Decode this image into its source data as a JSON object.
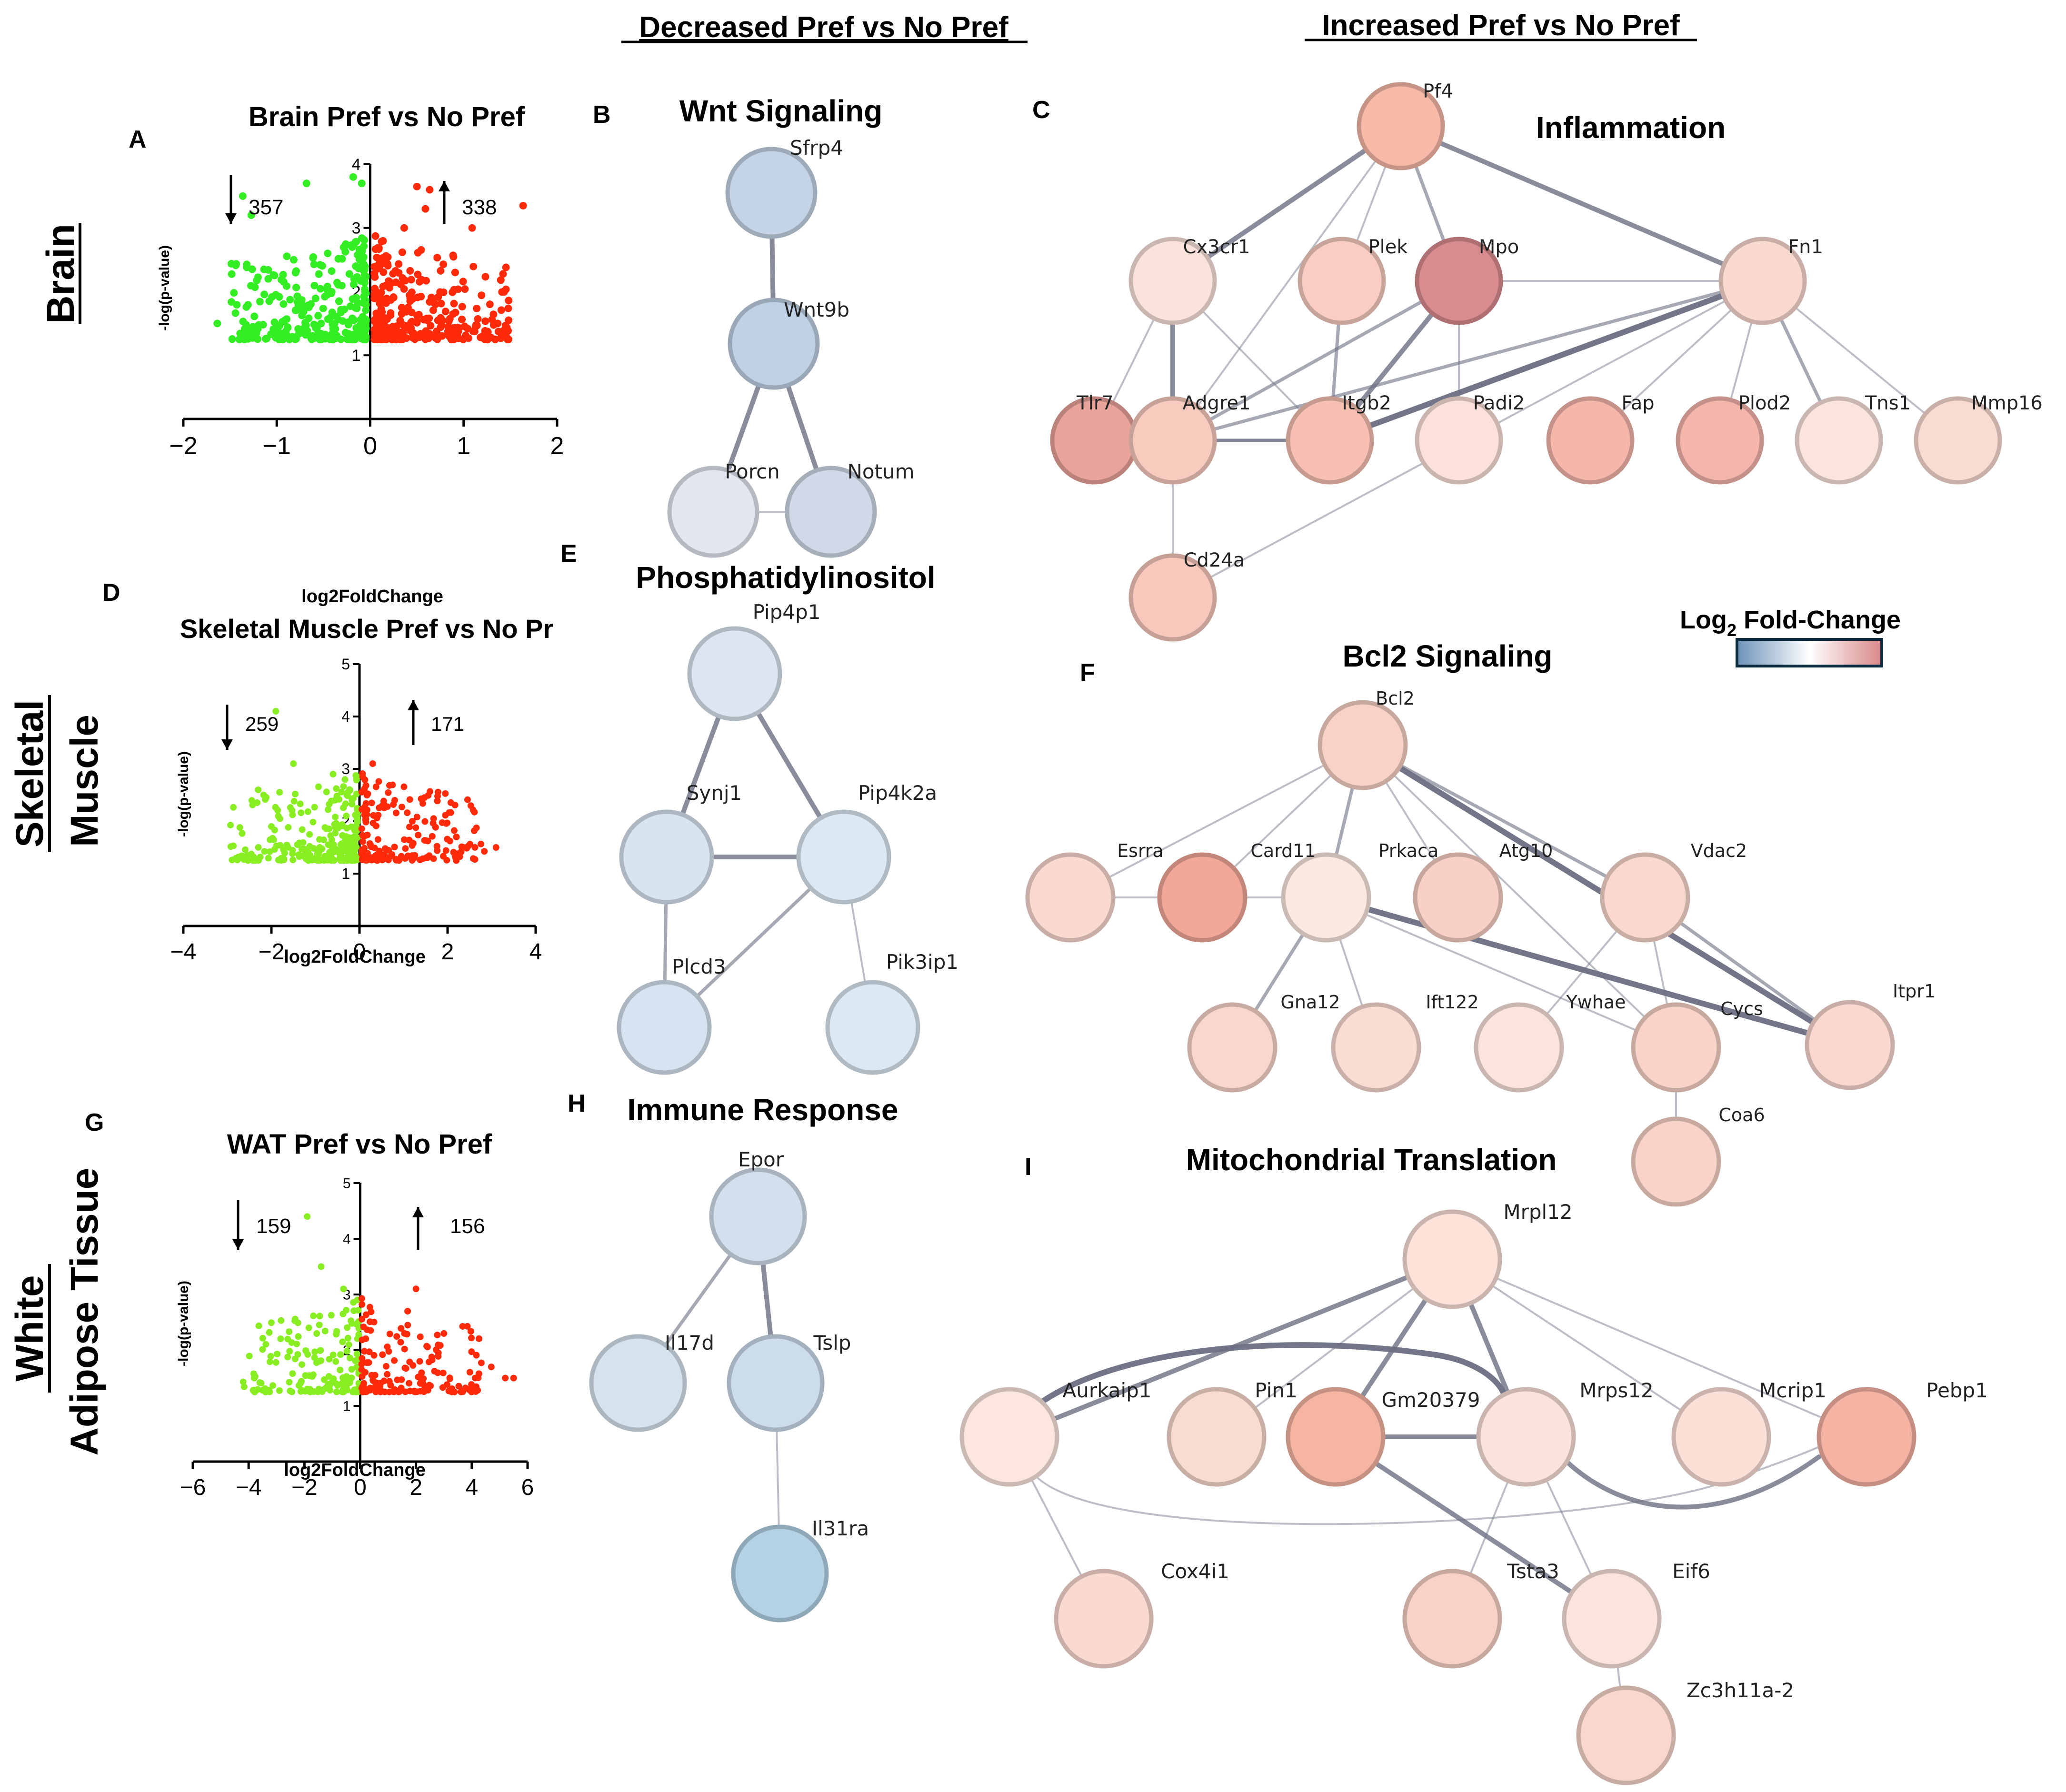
{
  "headers": {
    "decreased": "Decreased Pref vs No Pref",
    "increased": "Increased Pref vs No Pref"
  },
  "row_labels": {
    "brain": [
      "Brain"
    ],
    "muscle": [
      "Skeletal",
      "Muscle"
    ],
    "wat": [
      "White",
      "Adipose Tissue"
    ]
  },
  "panel_letters": {
    "A": "A",
    "B": "B",
    "C": "C",
    "D": "D",
    "E": "E",
    "F": "F",
    "G": "G",
    "H": "H",
    "I": "I"
  },
  "legend": {
    "title_prefix": "Log",
    "title_sub": "2",
    "title_suffix": " Fold-Change",
    "colors": [
      "#6d93b8",
      "#ffffff",
      "#d88888"
    ]
  },
  "colors": {
    "down_points": "#33ee22",
    "down_points_alt": "#88ee22",
    "up_points": "#ff2a0a",
    "edge": "#6b6f82"
  },
  "chart_data": [
    {
      "id": "A",
      "type": "scatter",
      "title": "Brain Pref vs No Pref",
      "xlabel": "log2FoldChange",
      "ylabel": "-log(p-value)",
      "xlim": [
        -2.2,
        2.2
      ],
      "ylim": [
        0,
        4
      ],
      "xticks": [
        "−2",
        "−1",
        "0",
        "1",
        "2"
      ],
      "yticks": [
        "1",
        "2",
        "3",
        "4"
      ],
      "down_count": "357",
      "up_count": "338",
      "down_color": "#33ee22",
      "up_color": "#ff2a0a",
      "down_extremes": [
        [
          -1.8,
          1.5
        ],
        [
          -1.5,
          3.5
        ],
        [
          -1.4,
          3.2
        ],
        [
          -0.75,
          3.7
        ],
        [
          -0.2,
          3.8
        ],
        [
          -0.1,
          3.7
        ],
        [
          -1.2,
          2.2
        ],
        [
          -0.9,
          2.5
        ],
        [
          -0.5,
          2.6
        ]
      ],
      "up_extremes": [
        [
          1.8,
          3.35
        ],
        [
          0.55,
          3.65
        ],
        [
          0.7,
          3.6
        ],
        [
          0.65,
          3.3
        ],
        [
          0.4,
          3.0
        ],
        [
          1.2,
          3.0
        ],
        [
          1.6,
          1.3
        ],
        [
          1.5,
          1.5
        ],
        [
          1.0,
          2.3
        ]
      ]
    },
    {
      "id": "D",
      "type": "scatter",
      "title": "Skeletal Muscle Pref vs No Pr",
      "xlabel": "log2FoldChange",
      "ylabel": "-log(p-value)",
      "xlim": [
        -4,
        4
      ],
      "ylim": [
        0,
        5
      ],
      "xticks": [
        "−4",
        "−2",
        "0",
        "2",
        "4"
      ],
      "yticks": [
        "1",
        "2",
        "3",
        "4",
        "5"
      ],
      "down_count": "259",
      "up_count": "171",
      "down_color": "#88ee22",
      "up_color": "#ff2a0a",
      "down_extremes": [
        [
          -1.9,
          4.1
        ],
        [
          -2.3,
          2.6
        ],
        [
          -1.5,
          3.1
        ],
        [
          -0.6,
          2.9
        ],
        [
          -2.0,
          1.9
        ]
      ],
      "up_extremes": [
        [
          3.1,
          1.5
        ],
        [
          0.3,
          3.1
        ],
        [
          0.8,
          2.4
        ],
        [
          2.2,
          1.7
        ],
        [
          1.2,
          2.0
        ]
      ]
    },
    {
      "id": "G",
      "type": "scatter",
      "title": "WAT Pref vs No Pref",
      "xlabel": "log2FoldChange",
      "ylabel": "-log(p-value)",
      "xlim": [
        -6,
        6
      ],
      "ylim": [
        0,
        5
      ],
      "xticks": [
        "−6",
        "−4",
        "−2",
        "0",
        "2",
        "4",
        "6"
      ],
      "yticks": [
        "1",
        "2",
        "3",
        "4",
        "5"
      ],
      "down_count": "159",
      "up_count": "156",
      "down_color": "#88ee22",
      "up_color": "#ff2a0a",
      "down_extremes": [
        [
          -1.9,
          4.4
        ],
        [
          -3.8,
          1.5
        ],
        [
          -2.6,
          2.2
        ],
        [
          -1.4,
          3.5
        ],
        [
          -0.6,
          3.1
        ]
      ],
      "up_extremes": [
        [
          5.5,
          1.5
        ],
        [
          4.7,
          1.7
        ],
        [
          2.0,
          3.1
        ],
        [
          1.7,
          2.7
        ],
        [
          3.0,
          2.3
        ],
        [
          5.2,
          1.5
        ]
      ]
    }
  ],
  "networks": [
    {
      "id": "B",
      "title": "Wnt Signaling",
      "nodes": [
        {
          "label": "Sfrp4",
          "fill": "#c4d4e6"
        },
        {
          "label": "Wnt9b",
          "fill": "#bfd1e4"
        },
        {
          "label": "Porcn",
          "fill": "#e2e7f0"
        },
        {
          "label": "Notum",
          "fill": "#cfd9e7"
        }
      ],
      "edges": [
        [
          "Sfrp4",
          "Wnt9b",
          3
        ],
        [
          "Wnt9b",
          "Porcn",
          3
        ],
        [
          "Wnt9b",
          "Notum",
          3
        ],
        [
          "Porcn",
          "Notum",
          1
        ]
      ]
    },
    {
      "id": "E",
      "title": "Phosphatidylinositol",
      "nodes": [
        {
          "label": "Pip4p1",
          "fill": "#dbe6f1"
        },
        {
          "label": "Synj1",
          "fill": "#d8e5f1"
        },
        {
          "label": "Pip4k2a",
          "fill": "#dce8f2"
        },
        {
          "label": "Plcd3",
          "fill": "#d6e4f1"
        },
        {
          "label": "Pik3ip1",
          "fill": "#dce8f2"
        }
      ],
      "edges": [
        [
          "Pip4p1",
          "Synj1",
          3
        ],
        [
          "Pip4p1",
          "Pip4k2a",
          3
        ],
        [
          "Synj1",
          "Pip4k2a",
          3
        ],
        [
          "Synj1",
          "Plcd3",
          2
        ],
        [
          "Pip4k2a",
          "Plcd3",
          2
        ],
        [
          "Pip4k2a",
          "Pik3ip1",
          1
        ]
      ]
    },
    {
      "id": "H",
      "title": "Immune Response",
      "nodes": [
        {
          "label": "Epor",
          "fill": "#d2e0ed"
        },
        {
          "label": "Il17d",
          "fill": "#d6e3ef"
        },
        {
          "label": "Tslp",
          "fill": "#ccdcec"
        },
        {
          "label": "Il31ra",
          "fill": "#b3d2e6"
        }
      ],
      "edges": [
        [
          "Epor",
          "Il17d",
          2
        ],
        [
          "Epor",
          "Tslp",
          3
        ],
        [
          "Tslp",
          "Il31ra",
          1
        ]
      ]
    },
    {
      "id": "C",
      "title": "Inflammation",
      "nodes": [
        {
          "label": "Pf4",
          "fill": "#f7b9a8"
        },
        {
          "label": "Cx3cr1",
          "fill": "#fbe3dc"
        },
        {
          "label": "Plek",
          "fill": "#f9cdc1"
        },
        {
          "label": "Mpo",
          "fill": "#d98c8e"
        },
        {
          "label": "Fn1",
          "fill": "#fad9cf"
        },
        {
          "label": "Tlr7",
          "fill": "#e8a39a"
        },
        {
          "label": "Adgre1",
          "fill": "#f8cbbf"
        },
        {
          "label": "Itgb2",
          "fill": "#f7c0b3"
        },
        {
          "label": "Padi2",
          "fill": "#fbe1d9"
        },
        {
          "label": "Fap",
          "fill": "#f5b7aa"
        },
        {
          "label": "Plod2",
          "fill": "#f4b5ab"
        },
        {
          "label": "Tns1",
          "fill": "#fbe4dd"
        },
        {
          "label": "Mmp16",
          "fill": "#fadbd2"
        },
        {
          "label": "Cd24a",
          "fill": "#f7c8bb"
        }
      ],
      "edges": [
        [
          "Pf4",
          "Cx3cr1",
          3
        ],
        [
          "Pf4",
          "Plek",
          1
        ],
        [
          "Pf4",
          "Mpo",
          2
        ],
        [
          "Pf4",
          "Fn1",
          3
        ],
        [
          "Pf4",
          "Adgre1",
          1
        ],
        [
          "Cx3cr1",
          "Tlr7",
          1
        ],
        [
          "Cx3cr1",
          "Adgre1",
          3
        ],
        [
          "Cx3cr1",
          "Itgb2",
          1
        ],
        [
          "Plek",
          "Itgb2",
          2
        ],
        [
          "Mpo",
          "Itgb2",
          3
        ],
        [
          "Mpo",
          "Fn1",
          1
        ],
        [
          "Mpo",
          "Padi2",
          1
        ],
        [
          "Mpo",
          "Adgre1",
          2
        ],
        [
          "Fn1",
          "Itgb2",
          4
        ],
        [
          "Fn1",
          "Adgre1",
          2
        ],
        [
          "Fn1",
          "Plod2",
          1
        ],
        [
          "Fn1",
          "Tns1",
          2
        ],
        [
          "Fn1",
          "Mmp16",
          1
        ],
        [
          "Fn1",
          "Fap",
          1
        ],
        [
          "Fn1",
          "Cd24a",
          1
        ],
        [
          "Tlr7",
          "Adgre1",
          2
        ],
        [
          "Tlr7",
          "Itgb2",
          2
        ],
        [
          "Adgre1",
          "Itgb2",
          2
        ],
        [
          "Adgre1",
          "Cd24a",
          1
        ]
      ]
    },
    {
      "id": "F",
      "title": "Bcl2 Signaling",
      "nodes": [
        {
          "label": "Bcl2",
          "fill": "#f9d2c6"
        },
        {
          "label": "Esrra",
          "fill": "#fad9cf"
        },
        {
          "label": "Card11",
          "fill": "#f2a898"
        },
        {
          "label": "Prkaca",
          "fill": "#fce8e1"
        },
        {
          "label": "Atg10",
          "fill": "#f9d0c5"
        },
        {
          "label": "Vdac2",
          "fill": "#fad8ce"
        },
        {
          "label": "Itpr1",
          "fill": "#fad8cf"
        },
        {
          "label": "Gna12",
          "fill": "#fad7cc"
        },
        {
          "label": "Ift122",
          "fill": "#fbdcd3"
        },
        {
          "label": "Ywhae",
          "fill": "#fce3dc"
        },
        {
          "label": "Cycs",
          "fill": "#f9d3c7"
        },
        {
          "label": "Coa6",
          "fill": "#f9d3c8"
        }
      ],
      "edges": [
        [
          "Bcl2",
          "Esrra",
          1
        ],
        [
          "Bcl2",
          "Card11",
          1
        ],
        [
          "Bcl2",
          "Prkaca",
          2
        ],
        [
          "Bcl2",
          "Vdac2",
          2
        ],
        [
          "Bcl2",
          "Itpr1",
          4
        ],
        [
          "Bcl2",
          "Cycs",
          1
        ],
        [
          "Bcl2",
          "Atg10",
          1
        ],
        [
          "Prkaca",
          "Itpr1",
          4
        ],
        [
          "Prkaca",
          "Gna12",
          2
        ],
        [
          "Prkaca",
          "Ift122",
          1
        ],
        [
          "Prkaca",
          "Cycs",
          1
        ],
        [
          "Prkaca",
          "Esrra",
          1
        ],
        [
          "Vdac2",
          "Itpr1",
          2
        ],
        [
          "Vdac2",
          "Cycs",
          1
        ],
        [
          "Vdac2",
          "Ywhae",
          1
        ],
        [
          "Cycs",
          "Coa6",
          1
        ]
      ]
    },
    {
      "id": "I",
      "title": "Mitochondrial Translation",
      "nodes": [
        {
          "label": "Mrpl12",
          "fill": "#fce2d9"
        },
        {
          "label": "Aurkaip1",
          "fill": "#fce6de"
        },
        {
          "label": "Pin1",
          "fill": "#fadbd0"
        },
        {
          "label": "Gm20379",
          "fill": "#f6b5a3"
        },
        {
          "label": "Mrps12",
          "fill": "#fbe2da"
        },
        {
          "label": "Mcrip1",
          "fill": "#fbe0d7"
        },
        {
          "label": "Pebp1",
          "fill": "#f5b3a3"
        },
        {
          "label": "Cox4i1",
          "fill": "#fadad0"
        },
        {
          "label": "Tsta3",
          "fill": "#f8d2c6"
        },
        {
          "label": "Eif6",
          "fill": "#fce4dc"
        },
        {
          "label": "Zc3h11a-2",
          "fill": "#f9d7cc"
        }
      ],
      "edges": [
        [
          "Mrpl12",
          "Aurkaip1",
          3
        ],
        [
          "Mrpl12",
          "Gm20379",
          3
        ],
        [
          "Mrpl12",
          "Mrps12",
          3
        ],
        [
          "Mrpl12",
          "Pin1",
          1
        ],
        [
          "Mrpl12",
          "Mcrip1",
          1
        ],
        [
          "Mrpl12",
          "Pebp1",
          1
        ],
        [
          "Aurkaip1",
          "Mrps12",
          4
        ],
        [
          "Aurkaip1",
          "Pebp1",
          1
        ],
        [
          "Aurkaip1",
          "Cox4i1",
          1
        ],
        [
          "Gm20379",
          "Mrps12",
          3
        ],
        [
          "Gm20379",
          "Eif6",
          3
        ],
        [
          "Mrps12",
          "Pebp1",
          3
        ],
        [
          "Mrps12",
          "Tsta3",
          1
        ],
        [
          "Mrps12",
          "Eif6",
          1
        ],
        [
          "Eif6",
          "Zc3h11a-2",
          1
        ]
      ]
    }
  ]
}
